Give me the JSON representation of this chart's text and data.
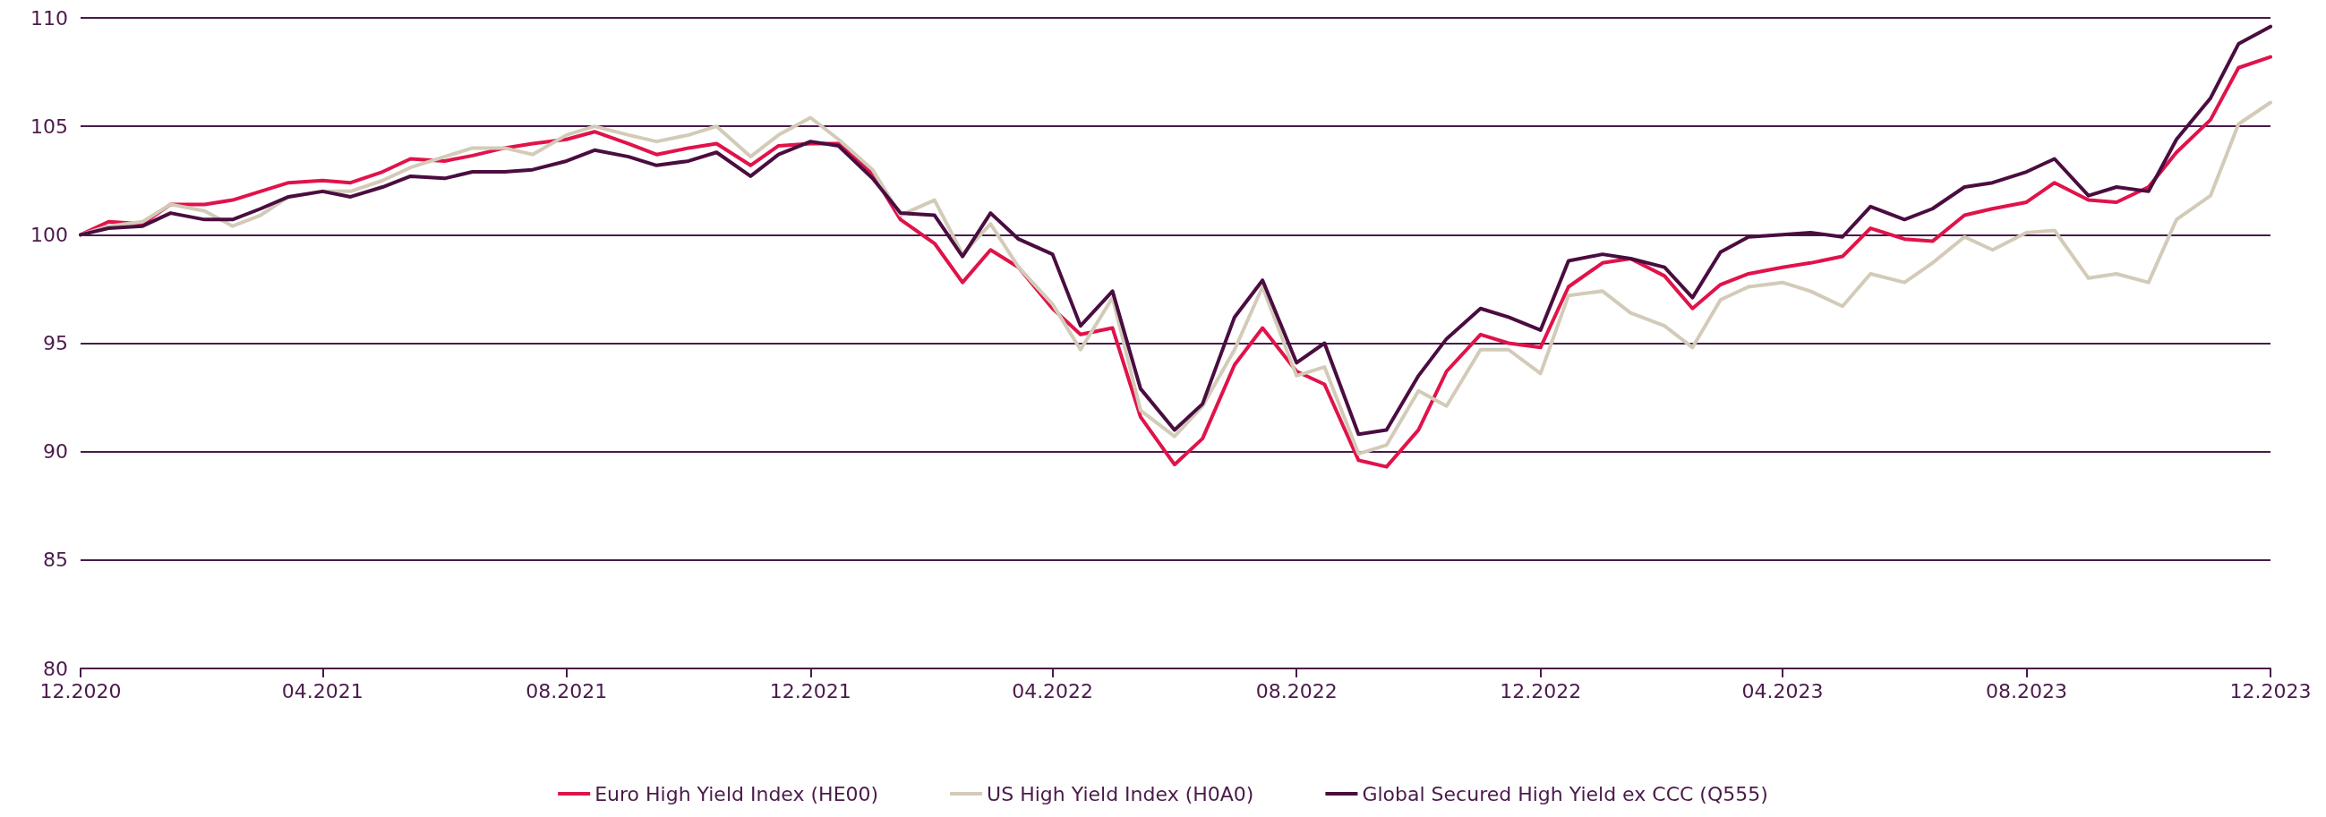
{
  "chart_data": {
    "type": "line",
    "legend": "bottom",
    "grid": "y",
    "marker": "none",
    "line_style": "solid",
    "x": [
      "2020-12-01",
      "2020-12-15",
      "2021-01-01",
      "2021-01-15",
      "2021-02-01",
      "2021-02-15",
      "2021-03-01",
      "2021-03-15",
      "2021-04-01",
      "2021-04-15",
      "2021-05-01",
      "2021-05-15",
      "2021-06-01",
      "2021-06-15",
      "2021-07-01",
      "2021-07-15",
      "2021-08-01",
      "2021-08-15",
      "2021-09-01",
      "2021-09-15",
      "2021-10-01",
      "2021-10-15",
      "2021-11-01",
      "2021-11-15",
      "2021-12-01",
      "2021-12-15",
      "2022-01-01",
      "2022-01-15",
      "2022-02-01",
      "2022-02-15",
      "2022-03-01",
      "2022-03-15",
      "2022-04-01",
      "2022-04-15",
      "2022-05-01",
      "2022-05-15",
      "2022-06-01",
      "2022-06-15",
      "2022-07-01",
      "2022-07-15",
      "2022-08-01",
      "2022-08-15",
      "2022-09-01",
      "2022-09-15",
      "2022-10-01",
      "2022-10-15",
      "2022-11-01",
      "2022-11-15",
      "2022-12-01",
      "2022-12-15",
      "2023-01-01",
      "2023-01-15",
      "2023-02-01",
      "2023-02-15",
      "2023-03-01",
      "2023-03-15",
      "2023-04-01",
      "2023-04-15",
      "2023-05-01",
      "2023-05-15",
      "2023-06-01",
      "2023-06-15",
      "2023-07-01",
      "2023-07-15",
      "2023-08-01",
      "2023-08-15",
      "2023-09-01",
      "2023-09-15",
      "2023-10-01",
      "2023-10-15",
      "2023-11-01",
      "2023-11-15",
      "2023-12-01"
    ],
    "xlim": [
      "2020-12-01",
      "2023-12-01"
    ],
    "xticks": [
      {
        "value": "2020-12-01",
        "label": "12.2020"
      },
      {
        "value": "2021-04-01",
        "label": "04.2021"
      },
      {
        "value": "2021-08-01",
        "label": "08.2021"
      },
      {
        "value": "2021-12-01",
        "label": "12.2021"
      },
      {
        "value": "2022-04-01",
        "label": "04.2022"
      },
      {
        "value": "2022-08-01",
        "label": "08.2022"
      },
      {
        "value": "2022-12-01",
        "label": "12.2022"
      },
      {
        "value": "2023-04-01",
        "label": "04.2023"
      },
      {
        "value": "2023-08-01",
        "label": "08.2023"
      },
      {
        "value": "2023-12-01",
        "label": "12.2023"
      }
    ],
    "ylim": [
      80,
      110
    ],
    "yticks": [
      80,
      85,
      90,
      95,
      100,
      105,
      110
    ],
    "series": [
      {
        "name": "Euro High Yield Index (HE00)",
        "color": "#e0134a",
        "values": [
          100,
          100.6,
          100.5,
          101.4,
          101.4,
          101.6,
          102.0,
          102.4,
          102.5,
          102.4,
          102.9,
          103.5,
          103.4,
          103.65,
          104.0,
          104.2,
          104.4,
          104.75,
          104.2,
          103.7,
          104.0,
          104.2,
          103.2,
          104.1,
          104.2,
          104.2,
          102.8,
          100.7,
          99.6,
          97.8,
          99.3,
          98.5,
          96.6,
          95.4,
          95.7,
          91.6,
          89.4,
          90.6,
          94.0,
          95.7,
          93.7,
          93.1,
          89.6,
          89.3,
          91.0,
          93.7,
          95.4,
          95.0,
          94.8,
          97.6,
          98.7,
          98.9,
          98.1,
          96.6,
          97.7,
          98.2,
          98.5,
          98.7,
          99.0,
          100.3,
          99.8,
          99.7,
          100.9,
          101.2,
          101.5,
          102.4,
          101.6,
          101.5,
          102.2,
          103.8,
          105.3,
          107.7,
          108.2
        ]
      },
      {
        "name": "US High Yield Index (H0A0)",
        "color": "#d3cbb8",
        "values": [
          100,
          100.4,
          100.6,
          101.4,
          101.1,
          100.4,
          100.9,
          101.75,
          102.0,
          102.0,
          102.5,
          103.1,
          103.6,
          104.0,
          104.0,
          103.7,
          104.6,
          105.0,
          104.6,
          104.3,
          104.6,
          105.0,
          103.6,
          104.6,
          105.4,
          104.4,
          103.0,
          100.9,
          101.6,
          99.1,
          100.5,
          98.5,
          96.8,
          94.7,
          97.1,
          91.9,
          90.7,
          92.1,
          94.7,
          97.6,
          93.5,
          93.9,
          89.9,
          90.3,
          92.8,
          92.1,
          94.7,
          94.7,
          93.6,
          97.2,
          97.4,
          96.4,
          95.8,
          94.8,
          97.0,
          97.6,
          97.8,
          97.4,
          96.7,
          98.2,
          97.8,
          98.7,
          99.9,
          99.3,
          100.1,
          100.2,
          98.0,
          98.2,
          97.8,
          100.7,
          101.8,
          105.1,
          106.1
        ]
      },
      {
        "name": "Global Secured High Yield ex CCC (Q555)",
        "color": "#4a0d40",
        "values": [
          100,
          100.3,
          100.4,
          101.0,
          100.7,
          100.7,
          101.2,
          101.75,
          102.0,
          101.75,
          102.2,
          102.7,
          102.6,
          102.9,
          102.9,
          103.0,
          103.4,
          103.9,
          103.6,
          103.2,
          103.4,
          103.8,
          102.7,
          103.7,
          104.3,
          104.1,
          102.6,
          101.0,
          100.9,
          99.0,
          101.0,
          99.8,
          99.1,
          95.8,
          97.4,
          92.9,
          91.0,
          92.2,
          96.2,
          97.9,
          94.1,
          95.0,
          90.8,
          91.0,
          93.5,
          95.2,
          96.6,
          96.2,
          95.6,
          98.8,
          99.1,
          98.9,
          98.5,
          97.1,
          99.2,
          99.9,
          100.0,
          100.1,
          99.9,
          101.3,
          100.7,
          101.2,
          102.2,
          102.4,
          102.9,
          103.5,
          101.8,
          102.2,
          102.0,
          104.4,
          106.3,
          108.8,
          109.6
        ]
      }
    ]
  }
}
